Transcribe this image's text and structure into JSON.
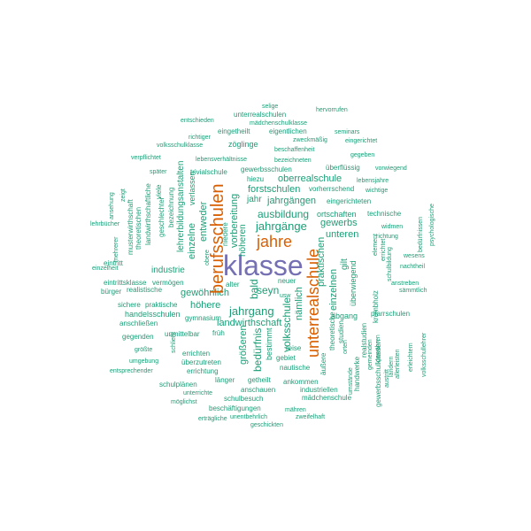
{
  "words": {
    "klasse": "klasse",
    "berufsschulen": "berufsschulen",
    "jahre": "jahre",
    "unterrealschule": "unterrealschule",
    "jahrgang": "jahrgang",
    "jahrgaenge": "jahrgänge",
    "ausbildung": "ausbildung",
    "oberrealschule": "oberrealschule",
    "landwirthschaft": "landwirthschaft",
    "gewoehnlich": "gewöhnlich",
    "industrie": "industrie",
    "forstschulen": "forstschulen",
    "volksschule": "volksschule",
    "unteren": "unteren",
    "gewerbs": "gewerbs",
    "bald": "bald",
    "seyn": "seyn",
    "jahrgaengen": "jahrgängen",
    "eingerichteten": "eingerichteten",
    "ortschaften": "ortschaften",
    "technische": "technische",
    "hoehere": "höhere",
    "hoeheren": "höheren",
    "vorbereitung": "vorbereitung",
    "entweder": "entweder",
    "einzelne": "einzelne",
    "einzelnen": "einzelnen",
    "praktischen": "praktischen",
    "naemlich": "nämlich",
    "beduerfnis": "bedürfnis",
    "groesseren": "größeren",
    "bestimmt": "bestimmt",
    "gewerbsschulen": "gewerbsschulen",
    "trivialschule": "trivialschule",
    "hiezu": "hiezu",
    "vorherrschend": "vorherrschend",
    "jahr": "jahr",
    "ueberfluessig": "überflüssig",
    "vorwiegend": "vorwiegend",
    "lebensjahre": "lebensjahre",
    "wichtige": "wichtige",
    "zoeglinge": "zöglinge",
    "eingetheilt": "eingetheilt",
    "eigentlichen": "eigentlichen",
    "zweckmaessig": "zweckmäßig",
    "eingerichtet": "eingerichtet",
    "richtiger": "richtiger",
    "lebensverhaeltnisse": "lebensverhältnisse",
    "bezeichneten": "bezeichneten",
    "beschaffenheit": "beschaffenheit",
    "gegeben": "gegeben",
    "volksschulklasse": "volksschulklasse",
    "verpflichtet": "verpflichtet",
    "entschieden": "entschieden",
    "unterrealschulen": "unterrealschulen",
    "maedchenschulklasse": "mädchenschulklasse",
    "selige": "selige",
    "hervorrufen": "hervorrufen",
    "seminars": "seminars",
    "spaeter": "später",
    "lehrerbildungsanstalten": "lehrerbildungsanstalten",
    "verlassen": "verlassen",
    "niedere": "niedere",
    "obere": "obere",
    "alter": "alter",
    "neuer": "neuer",
    "usw": "usw",
    "bezeichnung": "bezeichnung",
    "geschlechter": "geschlechter",
    "viele": "viele",
    "zeigt": "zeigt",
    "ansehung": "ansehung",
    "lehrbuecher": "lehrbücher",
    "musterwirthschaft": "musterwirthschaft",
    "landwirthschaftliche": "landwirthschaftliche",
    "mehrerer": "mehrerer",
    "theoretischen": "theoretischen",
    "eintritt": "eintritt",
    "einzelheit": "einzelheit",
    "eintrittsklasse": "eintrittsklasse",
    "buerger": "bürger",
    "realistische": "realistische",
    "vermoegen": "vermögen",
    "sichere": "sichere",
    "praktische": "praktische",
    "handelsschulen": "handelsschulen",
    "anschliessen": "anschließen",
    "gymnasium": "gymnasium",
    "frueh": "früh",
    "gegenden": "gegenden",
    "unmittelbar": "unmittelbar",
    "groesste": "größte",
    "errichten": "errichten",
    "umgebung": "umgebung",
    "ueberzutreten": "überzutreten",
    "entsprechender": "entsprechender",
    "errichtung": "errichtung",
    "schliesst": "schließt",
    "schulplaenen": "schulplänen",
    "laenger": "länger",
    "getheilt": "getheilt",
    "ankommen": "ankommen",
    "unterrichte": "unterrichte",
    "moeglichst": "möglichst",
    "schulbesuch": "schulbesuch",
    "anschauen": "anschauen",
    "beschaeftigungen": "beschäftigungen",
    "industriellen": "industriellen",
    "maedchenschule": "mädchenschule",
    "maehren": "mähren",
    "ertraegliche": "erträgliche",
    "unentbehrlich": "unentbehrlich",
    "zweifelhaft": "zweifelhaft",
    "geschickten": "geschickten",
    "gebiet": "gebiet",
    "nautische": "nautische",
    "reise": "reise",
    "abgang": "abgang",
    "studien": "studien",
    "theoretische": "theoretische",
    "aeussere": "äußere",
    "orten": "orten",
    "gilt": "gilt",
    "ueberwiegend": "überwiegend",
    "pfarrschulen": "pfarrschulen",
    "handwerke": "handwerke",
    "umstaende": "umstände",
    "realstudien": "realstudien",
    "gemeinden": "gemeinden",
    "gewaehren": "gewähren",
    "krombholz": "krombholz",
    "gewerbsschulklassen": "gewerbsschulklassen",
    "austritt": "austritt",
    "laendern": "ländern",
    "allerleisten": "allerleisten",
    "schulbildung": "schulbildung",
    "errichtet": "errichtet",
    "element": "element",
    "richtung": "richtung",
    "widmen": "widmen",
    "wesens": "wesens",
    "nachtheil": "nachtheil",
    "anstreben": "anstreben",
    "saemmtlich": "sämmtlich",
    "erleichtern": "erleichtern",
    "volksschullehrer": "volksschullehrer",
    "beduerfnissen": "bedürfnissen",
    "psychologische": "psychologische"
  },
  "colors": {
    "green": "#1b9e77",
    "orange": "#d95f02",
    "purple": "#7570b3"
  }
}
